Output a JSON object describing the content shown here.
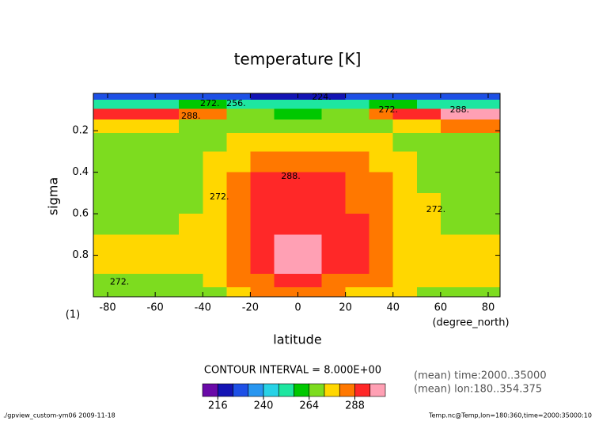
{
  "chart_data": {
    "type": "contour",
    "title": "temperature [K]",
    "x_label": "latitude",
    "x_unit": "(degree_north)",
    "y_label": "sigma",
    "y_unit": "(1)",
    "x": [
      -85,
      -75,
      -65,
      -55,
      -45,
      -35,
      -25,
      -15,
      -5,
      5,
      15,
      25,
      35,
      45,
      55,
      65,
      75,
      85
    ],
    "y": [
      0.03,
      0.07,
      0.12,
      0.17,
      0.25,
      0.35,
      0.45,
      0.55,
      0.65,
      0.75,
      0.85,
      0.93,
      0.98
    ],
    "z": [
      [
        224,
        224,
        224,
        224,
        226,
        228,
        226,
        222,
        220,
        220,
        222,
        226,
        228,
        226,
        224,
        224,
        224,
        224
      ],
      [
        250,
        250,
        252,
        254,
        256,
        258,
        254,
        250,
        248,
        248,
        250,
        254,
        258,
        256,
        254,
        252,
        250,
        250
      ],
      [
        290,
        290,
        290,
        288,
        286,
        280,
        270,
        264,
        262,
        262,
        264,
        270,
        282,
        288,
        292,
        296,
        298,
        298
      ],
      [
        276,
        276,
        274,
        272,
        270,
        268,
        266,
        266,
        266,
        266,
        266,
        268,
        270,
        272,
        276,
        280,
        284,
        284
      ],
      [
        264,
        264,
        264,
        266,
        268,
        270,
        274,
        276,
        276,
        276,
        276,
        274,
        272,
        270,
        268,
        266,
        266,
        266
      ],
      [
        264,
        264,
        264,
        266,
        268,
        272,
        278,
        283,
        284,
        284,
        283,
        281,
        276,
        272,
        270,
        266,
        264,
        264
      ],
      [
        266,
        266,
        266,
        268,
        270,
        274,
        282,
        288,
        290,
        290,
        289,
        285,
        280,
        275,
        271,
        268,
        266,
        266
      ],
      [
        266,
        266,
        266,
        268,
        270,
        276,
        284,
        291,
        293,
        293,
        291,
        287,
        282,
        277,
        272,
        268,
        266,
        266
      ],
      [
        268,
        268,
        268,
        270,
        272,
        277,
        285,
        293,
        295,
        295,
        293,
        289,
        284,
        278,
        273,
        269,
        268,
        268
      ],
      [
        274,
        274,
        274,
        274,
        275,
        278,
        285,
        294,
        298,
        298,
        294,
        290,
        285,
        278,
        274,
        273,
        272,
        272
      ],
      [
        276,
        276,
        276,
        276,
        277,
        279,
        284,
        293,
        297,
        297,
        293,
        289,
        284,
        279,
        276,
        275,
        275,
        275
      ],
      [
        270,
        270,
        270,
        270,
        270,
        272,
        280,
        286,
        290,
        290,
        287,
        284,
        280,
        275,
        273,
        272,
        272,
        272
      ],
      [
        268,
        268,
        268,
        268,
        268,
        270,
        276,
        280,
        282,
        282,
        280,
        278,
        276,
        272,
        270,
        270,
        270,
        270
      ]
    ],
    "xlim": [
      -86,
      85
    ],
    "ylim": [
      1.0,
      0.02
    ],
    "xticks": [
      -80,
      -60,
      -40,
      -20,
      0,
      20,
      40,
      60,
      80
    ],
    "yticks": [
      0.2,
      0.4,
      0.6,
      0.8
    ],
    "levels": [
      208,
      216,
      224,
      232,
      240,
      248,
      256,
      264,
      272,
      280,
      288,
      296,
      304
    ],
    "colors": [
      "#6a0aa8",
      "#1414b4",
      "#1e50e6",
      "#2896f0",
      "#28d2e6",
      "#1ee6a0",
      "#00c800",
      "#7ddc1f",
      "#ffd700",
      "#ff7800",
      "#ff2828",
      "#ffa0b4"
    ],
    "colorbar_ticks": [
      216,
      240,
      264,
      288
    ],
    "contour_labels": [
      {
        "text": "288.",
        "x": -3,
        "y": 0.42
      },
      {
        "text": "272.",
        "x": -33,
        "y": 0.52
      },
      {
        "text": "272.",
        "x": 58,
        "y": 0.58
      },
      {
        "text": "272.",
        "x": -75,
        "y": 0.93
      },
      {
        "text": "288.",
        "x": -45,
        "y": 0.13
      },
      {
        "text": "272.",
        "x": -37,
        "y": 0.07
      },
      {
        "text": "256.",
        "x": -26,
        "y": 0.07
      },
      {
        "text": "224.",
        "x": 10,
        "y": 0.04
      },
      {
        "text": "272.",
        "x": 38,
        "y": 0.1
      },
      {
        "text": "288.",
        "x": 68,
        "y": 0.1
      }
    ],
    "contour_interval": "CONTOUR INTERVAL = 8.000E+00",
    "notes": [
      "(mean) time:2000..35000",
      "(mean) lon:180..354.375"
    ],
    "footer_left": "./gpview_custom-ym06  2009-11-18",
    "footer_right": "Temp.nc@Temp,lon=180:360,time=2000:35000:10"
  }
}
